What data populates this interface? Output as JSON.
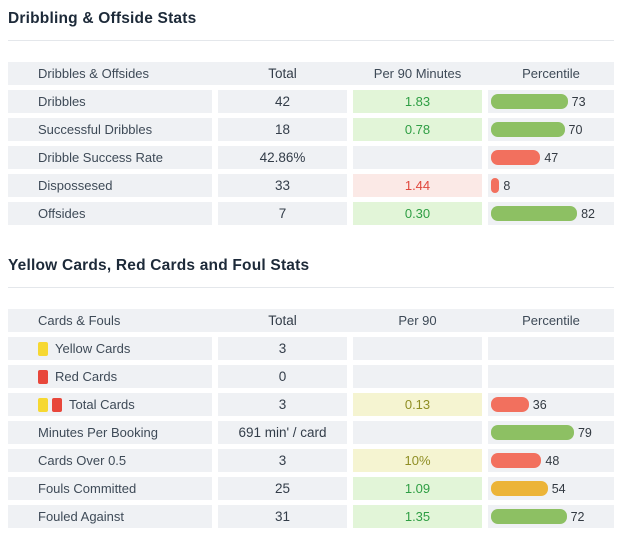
{
  "colors": {
    "bar_green": "#8dc063",
    "bar_red": "#f2705e",
    "bar_orange": "#ecb438",
    "cell_bg": "#eff1f4",
    "yellow_card": "#f6d832",
    "red_card": "#e8473b"
  },
  "sections": [
    {
      "title": "Dribbling & Offside Stats",
      "columns": [
        "Dribbles & Offsides",
        "Total",
        "Per 90 Minutes",
        "Percentile"
      ],
      "rows": [
        {
          "label": "Dribbles",
          "icons": [],
          "total": "42",
          "per90": {
            "text": "1.83",
            "tone": "green"
          },
          "percentile": {
            "value": 73,
            "color": "green"
          }
        },
        {
          "label": "Successful Dribbles",
          "icons": [],
          "total": "18",
          "per90": {
            "text": "0.78",
            "tone": "green"
          },
          "percentile": {
            "value": 70,
            "color": "green"
          }
        },
        {
          "label": "Dribble Success Rate",
          "icons": [],
          "total": "42.86%",
          "per90": null,
          "percentile": {
            "value": 47,
            "color": "red"
          }
        },
        {
          "label": "Dispossesed",
          "icons": [],
          "total": "33",
          "per90": {
            "text": "1.44",
            "tone": "red"
          },
          "percentile": {
            "value": 8,
            "color": "red"
          }
        },
        {
          "label": "Offsides",
          "icons": [],
          "total": "7",
          "per90": {
            "text": "0.30",
            "tone": "green"
          },
          "percentile": {
            "value": 82,
            "color": "green"
          }
        }
      ]
    },
    {
      "title": "Yellow Cards, Red Cards and Foul Stats",
      "columns": [
        "Cards & Fouls",
        "Total",
        "Per 90",
        "Percentile"
      ],
      "rows": [
        {
          "label": "Yellow Cards",
          "icons": [
            "yellow-card"
          ],
          "total": "3",
          "per90": null,
          "percentile": null
        },
        {
          "label": "Red Cards",
          "icons": [
            "red-card"
          ],
          "total": "0",
          "per90": null,
          "percentile": null
        },
        {
          "label": "Total Cards",
          "icons": [
            "yellow-card",
            "red-card"
          ],
          "total": "3",
          "per90": {
            "text": "0.13",
            "tone": "yellow"
          },
          "percentile": {
            "value": 36,
            "color": "red"
          }
        },
        {
          "label": "Minutes Per Booking",
          "icons": [],
          "total": "691 min' / card",
          "per90": null,
          "percentile": {
            "value": 79,
            "color": "green"
          }
        },
        {
          "label": "Cards Over 0.5",
          "icons": [],
          "total": "3",
          "per90": {
            "text": "10%",
            "tone": "yellow"
          },
          "percentile": {
            "value": 48,
            "color": "red"
          }
        },
        {
          "label": "Fouls Committed",
          "icons": [],
          "total": "25",
          "per90": {
            "text": "1.09",
            "tone": "green"
          },
          "percentile": {
            "value": 54,
            "color": "orange"
          }
        },
        {
          "label": "Fouled Against",
          "icons": [],
          "total": "31",
          "per90": {
            "text": "1.35",
            "tone": "green"
          },
          "percentile": {
            "value": 72,
            "color": "green"
          }
        }
      ]
    }
  ]
}
